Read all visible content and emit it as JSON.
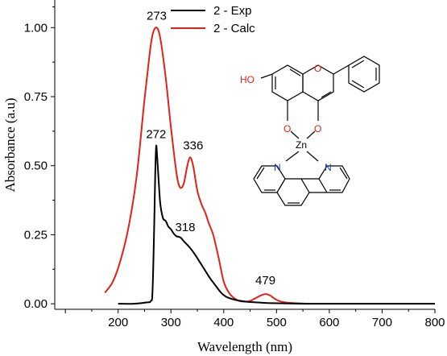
{
  "chart_data": {
    "type": "line",
    "xlabel": "Wavelength (nm)",
    "ylabel": "Absorbance (a.u)",
    "xlim": [
      80,
      800
    ],
    "ylim": [
      -0.02,
      1.1
    ],
    "x_ticks": [
      200,
      300,
      400,
      500,
      600,
      700,
      800
    ],
    "y_ticks": [
      0.0,
      0.25,
      0.5,
      0.75,
      1.0
    ],
    "x_tick_labels": [
      "200",
      "300",
      "400",
      "500",
      "600",
      "700",
      "800"
    ],
    "y_tick_labels": [
      "0.00",
      "0.25",
      "0.50",
      "0.75",
      "1.00"
    ],
    "legend_position": "top-center",
    "series": [
      {
        "name": "2 - Exp",
        "color": "#000000",
        "x": [
          200,
          230,
          255,
          262,
          265,
          268,
          270,
          272,
          274,
          277,
          280,
          285,
          290,
          295,
          300,
          305,
          310,
          318,
          325,
          335,
          345,
          355,
          365,
          375,
          385,
          395,
          405,
          420,
          440,
          460,
          480,
          500,
          550,
          600,
          700,
          800
        ],
        "y": [
          0.0,
          0.0,
          0.005,
          0.01,
          0.04,
          0.25,
          0.45,
          0.57,
          0.53,
          0.44,
          0.36,
          0.31,
          0.3,
          0.28,
          0.27,
          0.255,
          0.245,
          0.24,
          0.225,
          0.205,
          0.18,
          0.15,
          0.12,
          0.09,
          0.065,
          0.04,
          0.025,
          0.015,
          0.008,
          0.005,
          0.003,
          0.002,
          0.0,
          0.0,
          0.0,
          0.0
        ]
      },
      {
        "name": "2 - Calc",
        "color": "#e3201b",
        "x": [
          175,
          190,
          205,
          220,
          235,
          250,
          260,
          266,
          273,
          280,
          290,
          300,
          310,
          315,
          320,
          325,
          330,
          336,
          342,
          350,
          358,
          365,
          372,
          380,
          390,
          400,
          410,
          420,
          430,
          440,
          450,
          460,
          470,
          479,
          488,
          495,
          505,
          520,
          540,
          560
        ],
        "y": [
          0.04,
          0.08,
          0.16,
          0.28,
          0.46,
          0.74,
          0.91,
          0.98,
          1.0,
          0.96,
          0.82,
          0.64,
          0.48,
          0.43,
          0.42,
          0.44,
          0.49,
          0.53,
          0.5,
          0.41,
          0.36,
          0.33,
          0.29,
          0.25,
          0.17,
          0.08,
          0.04,
          0.02,
          0.01,
          0.008,
          0.01,
          0.02,
          0.03,
          0.035,
          0.03,
          0.02,
          0.01,
          0.004,
          0.002,
          0.0
        ]
      }
    ],
    "annotations": [
      {
        "text": "273",
        "x": 273,
        "y": 1.0
      },
      {
        "text": "272",
        "x": 272,
        "y": 0.57
      },
      {
        "text": "336",
        "x": 336,
        "y": 0.53
      },
      {
        "text": "318",
        "x": 318,
        "y": 0.24
      },
      {
        "text": "479",
        "x": 479,
        "y": 0.035
      }
    ],
    "structure_labels": {
      "hydroxyl": "HO",
      "oxygen": "O",
      "zinc": "Zn",
      "nitrogen": "N"
    }
  }
}
